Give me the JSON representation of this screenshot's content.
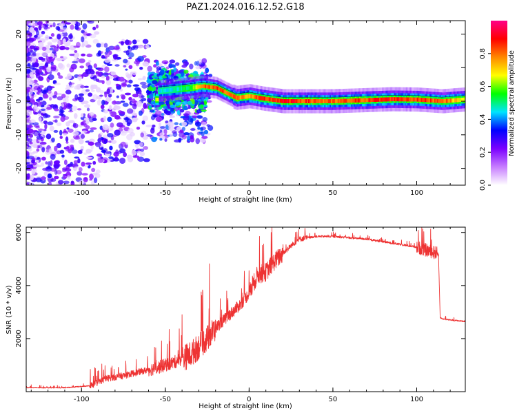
{
  "title": "PAZ1.2024.016.12.52.G18",
  "chart_data": [
    {
      "type": "heatmap",
      "xlabel": "Height of straight line (km)",
      "ylabel": "Frequency (Hz)",
      "xlim": [
        -133,
        129
      ],
      "ylim": [
        -25,
        24
      ],
      "xticks": [
        -100,
        -50,
        0,
        50,
        100
      ],
      "yticks": [
        -20,
        -10,
        0,
        10,
        20
      ],
      "colorbar": {
        "label": "Normalized spectral amplitude",
        "range": [
          0,
          1
        ],
        "ticks": [
          0.0,
          0.2,
          0.4,
          0.6,
          0.8
        ],
        "colormap": [
          "#ffffff",
          "#c77dff",
          "#7b00ff",
          "#0000ff",
          "#00e5ff",
          "#00ff00",
          "#ffff00",
          "#ff8800",
          "#ff0000",
          "#ff0088"
        ]
      },
      "ridge": [
        {
          "x": -55,
          "y": 3,
          "amp": 0.5
        },
        {
          "x": -45,
          "y": 3.5,
          "amp": 0.5
        },
        {
          "x": -35,
          "y": 4,
          "amp": 0.6
        },
        {
          "x": -28,
          "y": 4.5,
          "amp": 0.85
        },
        {
          "x": -20,
          "y": 4,
          "amp": 0.9
        },
        {
          "x": -14,
          "y": 2.5,
          "amp": 0.9
        },
        {
          "x": -8,
          "y": 1,
          "amp": 0.85
        },
        {
          "x": 0,
          "y": 1.5,
          "amp": 0.8
        },
        {
          "x": 8,
          "y": 0.8,
          "amp": 0.9
        },
        {
          "x": 20,
          "y": 0,
          "amp": 0.95
        },
        {
          "x": 50,
          "y": 0,
          "amp": 0.85
        },
        {
          "x": 85,
          "y": 0.6,
          "amp": 0.95
        },
        {
          "x": 100,
          "y": 0.5,
          "amp": 0.9
        },
        {
          "x": 115,
          "y": 0,
          "amp": 0.9
        },
        {
          "x": 128,
          "y": 0.5,
          "amp": 0.7
        }
      ]
    },
    {
      "type": "line",
      "xlabel": "Height of straight line (km)",
      "ylabel": "SNR (10 * v/v)",
      "xlim": [
        -133,
        129
      ],
      "ylim": [
        0,
        6200
      ],
      "xticks": [
        -100,
        -50,
        0,
        50,
        100
      ],
      "yticks": [
        2000,
        4000,
        6000
      ],
      "color": "#ee3333",
      "x": [
        -133,
        -110,
        -95,
        -85,
        -75,
        -65,
        -55,
        -45,
        -35,
        -30,
        -25,
        -20,
        -15,
        -10,
        -5,
        0,
        5,
        10,
        15,
        20,
        25,
        30,
        40,
        50,
        60,
        70,
        80,
        90,
        100,
        105,
        110,
        113,
        114,
        115,
        120,
        129
      ],
      "values": [
        150,
        150,
        220,
        500,
        600,
        750,
        900,
        1100,
        1400,
        1700,
        2000,
        2400,
        2700,
        3000,
        3300,
        3700,
        4400,
        4500,
        4900,
        5200,
        5500,
        5750,
        5850,
        5850,
        5800,
        5750,
        5650,
        5550,
        5450,
        5350,
        5250,
        5200,
        2800,
        2750,
        2700,
        2650
      ],
      "noise": [
        {
          "x_from": -133,
          "x_to": -95,
          "amp": 40
        },
        {
          "x_from": -95,
          "x_to": -60,
          "amp": 250
        },
        {
          "x_from": -60,
          "x_to": -40,
          "amp": 500
        },
        {
          "x_from": -40,
          "x_to": -20,
          "amp": 1000
        },
        {
          "x_from": -20,
          "x_to": 0,
          "amp": 450
        },
        {
          "x_from": 0,
          "x_to": 20,
          "amp": 700
        },
        {
          "x_from": 20,
          "x_to": 35,
          "amp": 200
        },
        {
          "x_from": 35,
          "x_to": 100,
          "amp": 80
        },
        {
          "x_from": 100,
          "x_to": 113,
          "amp": 500
        },
        {
          "x_from": 113,
          "x_to": 129,
          "amp": 50
        }
      ]
    }
  ]
}
